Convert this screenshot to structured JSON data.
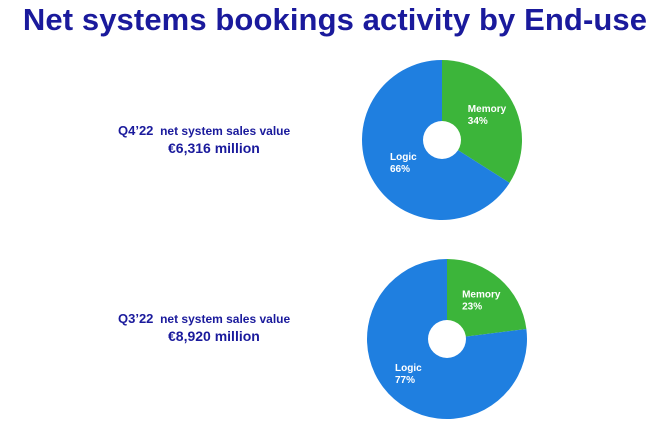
{
  "title": "Net systems bookings activity by End-use",
  "colors": {
    "logic": "#1f7fe0",
    "memory": "#3cb53a",
    "title": "#1a1a9c"
  },
  "blocks": [
    {
      "period": "Q4’22",
      "caption": "net system sales value",
      "value": "€6,316 million"
    },
    {
      "period": "Q3’22",
      "caption": "net system sales value",
      "value": "€8,920 million"
    }
  ],
  "chart_data": [
    {
      "type": "pie",
      "title": "",
      "slices": [
        {
          "name": "Memory",
          "value": 34,
          "label": "34%"
        },
        {
          "name": "Logic",
          "value": 66,
          "label": "66%"
        }
      ]
    },
    {
      "type": "pie",
      "title": "",
      "slices": [
        {
          "name": "Memory",
          "value": 23,
          "label": "23%"
        },
        {
          "name": "Logic",
          "value": 77,
          "label": "77%"
        }
      ]
    }
  ]
}
